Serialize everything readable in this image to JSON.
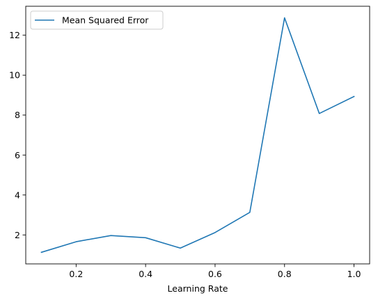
{
  "chart_data": {
    "type": "line",
    "title": "",
    "xlabel": "Learning Rate",
    "ylabel": "",
    "xlim": [
      0.055,
      1.045
    ],
    "ylim": [
      0.55,
      13.45
    ],
    "xticks": [
      0.2,
      0.4,
      0.6,
      0.8,
      1.0
    ],
    "xtick_labels": [
      "0.2",
      "0.4",
      "0.6",
      "0.8",
      "1.0"
    ],
    "yticks": [
      2,
      4,
      6,
      8,
      10,
      12
    ],
    "ytick_labels": [
      "2",
      "4",
      "6",
      "8",
      "10",
      "12"
    ],
    "grid": false,
    "legend": {
      "position": "top-left"
    },
    "series": [
      {
        "name": "Mean Squared Error",
        "color": "#1f77b4",
        "x": [
          0.1,
          0.2,
          0.3,
          0.4,
          0.5,
          0.6,
          0.7,
          0.8,
          0.9,
          1.0
        ],
        "y": [
          1.13,
          1.66,
          1.97,
          1.86,
          1.34,
          2.12,
          3.13,
          12.87,
          8.08,
          8.93
        ]
      }
    ]
  }
}
